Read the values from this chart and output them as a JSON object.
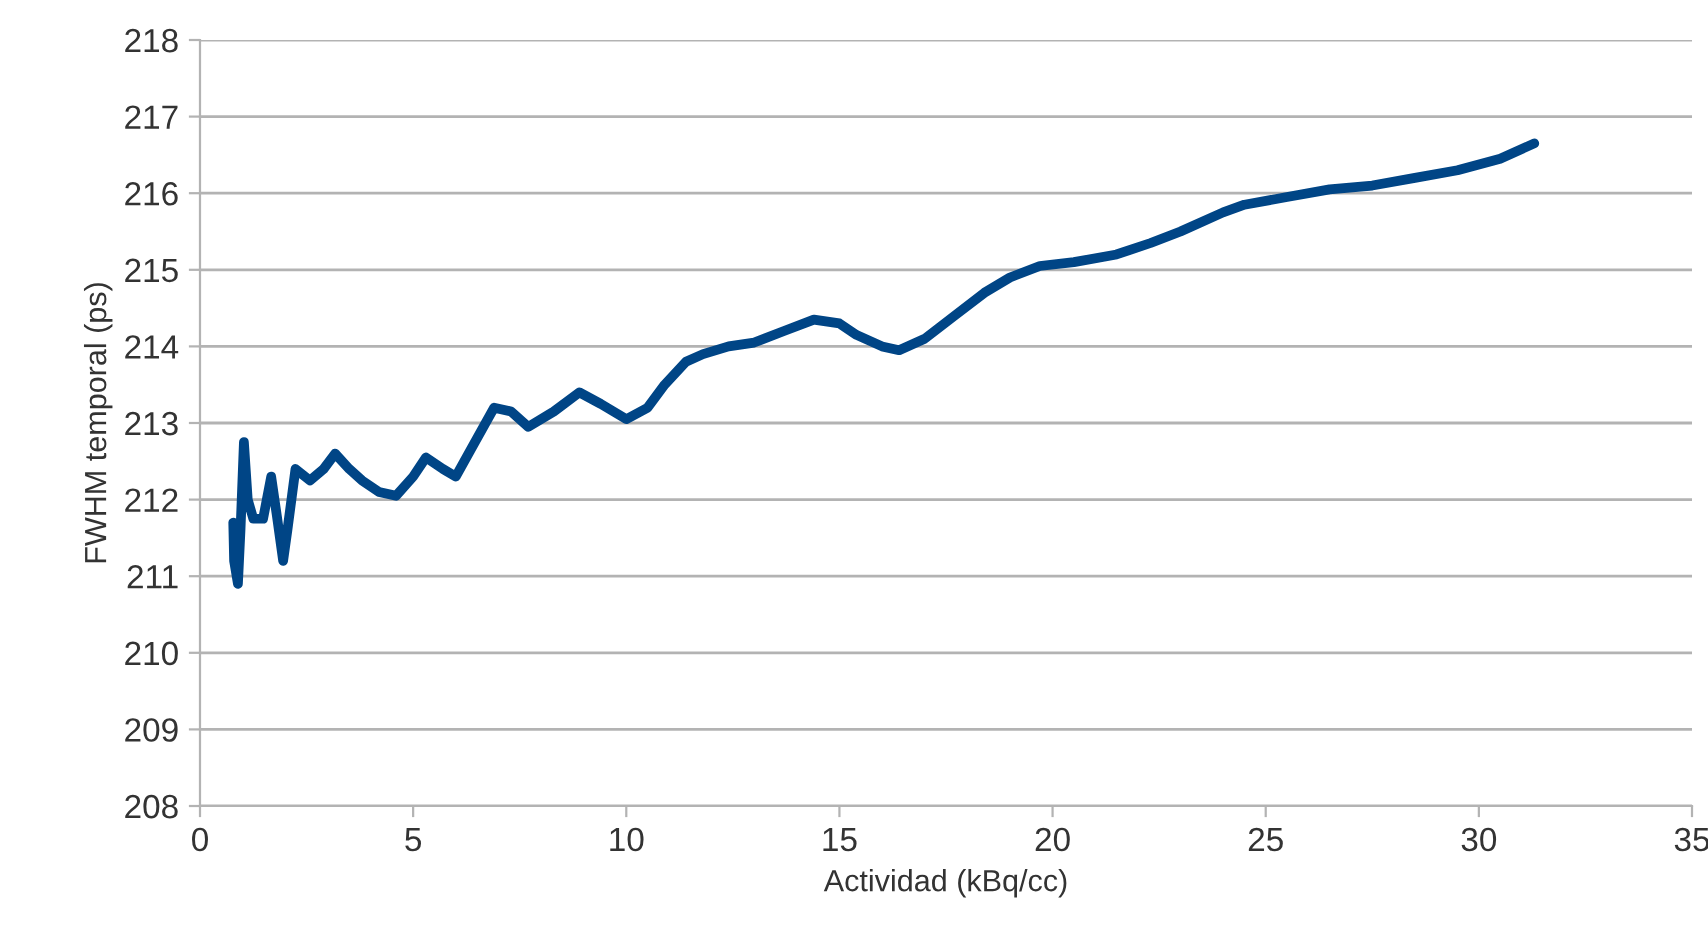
{
  "chart_data": {
    "type": "line",
    "xlabel": "Actividad (kBq/cc)",
    "ylabel": "FWHM temporal (ps)",
    "series": [
      {
        "color": "#004586",
        "x": [
          0.78,
          0.8,
          0.89,
          0.95,
          1.03,
          1.12,
          1.25,
          1.48,
          1.67,
          1.8,
          1.95,
          2.05,
          2.24,
          2.58,
          2.9,
          3.17,
          3.5,
          3.8,
          4.2,
          4.6,
          5.0,
          5.3,
          5.7,
          6.0,
          6.4,
          6.9,
          7.3,
          7.7,
          8.3,
          8.9,
          9.4,
          10.0,
          10.5,
          10.9,
          11.4,
          11.8,
          12.4,
          13.0,
          13.7,
          14.4,
          15.0,
          15.4,
          16.0,
          16.4,
          17.0,
          17.7,
          18.4,
          19.0,
          19.7,
          20.5,
          21.5,
          22.3,
          23.0,
          24.0,
          24.5,
          25.5,
          26.5,
          27.5,
          28.5,
          29.5,
          30.5,
          31.3
        ],
        "values": [
          211.7,
          211.2,
          210.9,
          211.6,
          212.75,
          212.0,
          211.75,
          211.75,
          212.3,
          211.8,
          211.2,
          211.6,
          212.4,
          212.25,
          212.4,
          212.6,
          212.4,
          212.25,
          212.1,
          212.05,
          212.3,
          212.55,
          212.4,
          212.3,
          212.7,
          213.2,
          213.15,
          212.95,
          213.15,
          213.4,
          213.25,
          213.05,
          213.2,
          213.5,
          213.8,
          213.9,
          214.0,
          214.05,
          214.2,
          214.35,
          214.3,
          214.15,
          214.0,
          213.95,
          214.1,
          214.4,
          214.7,
          214.9,
          215.05,
          215.1,
          215.2,
          215.35,
          215.5,
          215.75,
          215.85,
          215.95,
          216.05,
          216.1,
          216.2,
          216.3,
          216.45,
          216.65
        ]
      }
    ],
    "xlim": [
      0,
      35
    ],
    "xticks": [
      0,
      5,
      10,
      15,
      20,
      25,
      30,
      35
    ],
    "ylim": [
      208,
      218
    ],
    "yticks": [
      208,
      209,
      210,
      211,
      212,
      213,
      214,
      215,
      216,
      217,
      218
    ],
    "grid": "y",
    "legend": false,
    "line_style": "solid",
    "marker": "none"
  }
}
